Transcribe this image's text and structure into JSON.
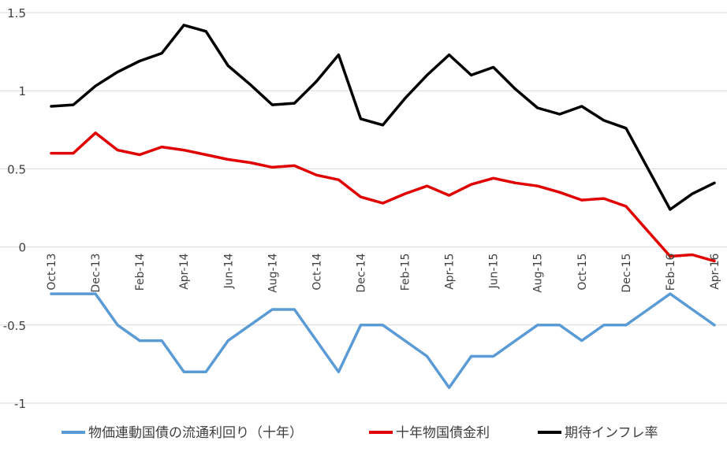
{
  "chart_data": {
    "type": "line",
    "title": "",
    "xlabel": "",
    "ylabel": "",
    "ylim": [
      -1,
      1.5
    ],
    "yticks": [
      1.5,
      1,
      0.5,
      0,
      -0.5,
      -1
    ],
    "ytick_labels": [
      "1.5",
      "1",
      "0.5",
      "0",
      "-0.5",
      "-1"
    ],
    "grid": true,
    "legend_position": "bottom",
    "x": [
      "Oct-13",
      "Nov-13",
      "Dec-13",
      "Jan-14",
      "Feb-14",
      "Mar-14",
      "Apr-14",
      "May-14",
      "Jun-14",
      "Jul-14",
      "Aug-14",
      "Sep-14",
      "Oct-14",
      "Nov-14",
      "Dec-14",
      "Jan-15",
      "Feb-15",
      "Mar-15",
      "Apr-15",
      "May-15",
      "Jun-15",
      "Jul-15",
      "Aug-15",
      "Sep-15",
      "Oct-15",
      "Nov-15",
      "Dec-15",
      "Jan-16",
      "Feb-16",
      "Mar-16",
      "Apr-16"
    ],
    "x_tick_labels": [
      "Oct-13",
      "Dec-13",
      "Feb-14",
      "Apr-14",
      "Jun-14",
      "Aug-14",
      "Oct-14",
      "Dec-14",
      "Feb-15",
      "Apr-15",
      "Jun-15",
      "Aug-15",
      "Oct-15",
      "Dec-15",
      "Feb-16",
      "Apr-16"
    ],
    "series": [
      {
        "name": "物価連動国債の流通利回り（十年）",
        "color": "#5B9BD5",
        "values": [
          -0.3,
          -0.3,
          -0.3,
          -0.5,
          -0.6,
          -0.6,
          -0.8,
          -0.8,
          -0.6,
          -0.5,
          -0.4,
          -0.4,
          -0.6,
          -0.8,
          -0.5,
          -0.5,
          -0.6,
          -0.7,
          -0.9,
          -0.7,
          -0.7,
          -0.6,
          -0.5,
          -0.5,
          -0.6,
          -0.5,
          -0.5,
          -0.4,
          -0.3,
          -0.4,
          -0.5
        ]
      },
      {
        "name": "十年物国債金利",
        "color": "#E00000",
        "values": [
          0.6,
          0.6,
          0.73,
          0.62,
          0.59,
          0.64,
          0.62,
          0.59,
          0.56,
          0.54,
          0.51,
          0.52,
          0.46,
          0.43,
          0.32,
          0.28,
          0.34,
          0.39,
          0.33,
          0.4,
          0.44,
          0.41,
          0.39,
          0.35,
          0.3,
          0.31,
          0.26,
          0.1,
          -0.06,
          -0.05,
          -0.09
        ]
      },
      {
        "name": "期待インフレ率",
        "color": "#000000",
        "values": [
          0.9,
          0.91,
          1.03,
          1.12,
          1.19,
          1.24,
          1.42,
          1.38,
          1.16,
          1.04,
          0.91,
          0.92,
          1.06,
          1.23,
          0.82,
          0.78,
          0.95,
          1.1,
          1.23,
          1.1,
          1.15,
          1.01,
          0.89,
          0.85,
          0.9,
          0.81,
          0.76,
          0.5,
          0.24,
          0.34,
          0.41
        ]
      }
    ]
  }
}
